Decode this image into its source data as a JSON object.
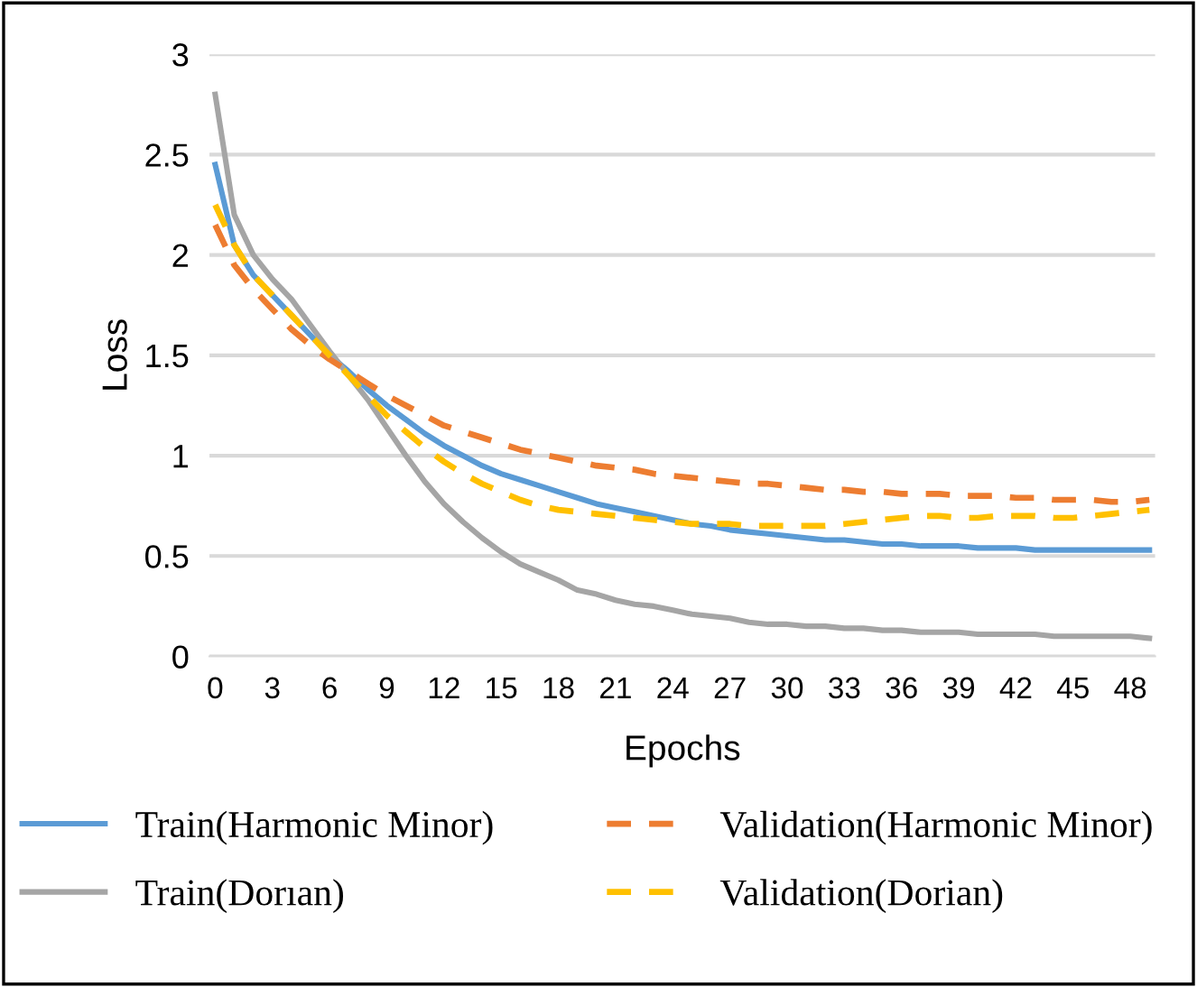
{
  "chart_data": {
    "type": "line",
    "xlabel": "Epochs",
    "ylabel": "Loss",
    "categories": [
      "0",
      null,
      null,
      "3",
      null,
      null,
      "6",
      null,
      null,
      "9",
      null,
      null,
      "12",
      null,
      null,
      "15",
      null,
      null,
      "18",
      null,
      null,
      "21",
      null,
      null,
      "24",
      null,
      null,
      "27",
      null,
      null,
      "30",
      null,
      null,
      "33",
      null,
      null,
      "36",
      null,
      null,
      "39",
      null,
      null,
      "42",
      null,
      null,
      "45",
      null,
      null,
      "48",
      null
    ],
    "ylim": [
      0,
      3
    ],
    "yticks": [
      0,
      0.5,
      1,
      1.5,
      2,
      2.5,
      3
    ],
    "grid": "y",
    "legend": "bottom",
    "series": [
      {
        "name": "Train(Harmonic Minor)",
        "color": "#5b9bd5",
        "line_style": "solid",
        "values": [
          2.45,
          2.05,
          1.9,
          1.8,
          1.7,
          1.6,
          1.5,
          1.42,
          1.33,
          1.25,
          1.18,
          1.11,
          1.05,
          1.0,
          0.95,
          0.91,
          0.88,
          0.85,
          0.82,
          0.79,
          0.76,
          0.74,
          0.72,
          0.7,
          0.68,
          0.66,
          0.65,
          0.63,
          0.62,
          0.61,
          0.6,
          0.59,
          0.58,
          0.58,
          0.57,
          0.56,
          0.56,
          0.55,
          0.55,
          0.55,
          0.54,
          0.54,
          0.54,
          0.53,
          0.53,
          0.53,
          0.53,
          0.53,
          0.53,
          0.53
        ]
      },
      {
        "name": "Train(Dorıan)",
        "color": "#a5a5a5",
        "line_style": "solid",
        "values": [
          2.8,
          2.2,
          2.0,
          1.88,
          1.78,
          1.65,
          1.52,
          1.4,
          1.28,
          1.14,
          1.0,
          0.87,
          0.76,
          0.67,
          0.59,
          0.52,
          0.46,
          0.42,
          0.38,
          0.33,
          0.31,
          0.28,
          0.26,
          0.25,
          0.23,
          0.21,
          0.2,
          0.19,
          0.17,
          0.16,
          0.16,
          0.15,
          0.15,
          0.14,
          0.14,
          0.13,
          0.13,
          0.12,
          0.12,
          0.12,
          0.11,
          0.11,
          0.11,
          0.11,
          0.1,
          0.1,
          0.1,
          0.1,
          0.1,
          0.09
        ]
      },
      {
        "name": "Validation(Harmonic Minor)",
        "color": "#ed7d31",
        "line_style": "dashed",
        "values": [
          2.15,
          1.95,
          1.83,
          1.73,
          1.63,
          1.55,
          1.48,
          1.42,
          1.36,
          1.3,
          1.25,
          1.2,
          1.15,
          1.12,
          1.09,
          1.06,
          1.03,
          1.01,
          0.99,
          0.97,
          0.95,
          0.94,
          0.93,
          0.91,
          0.9,
          0.89,
          0.88,
          0.87,
          0.86,
          0.86,
          0.85,
          0.84,
          0.83,
          0.83,
          0.82,
          0.82,
          0.81,
          0.81,
          0.81,
          0.8,
          0.8,
          0.8,
          0.79,
          0.79,
          0.78,
          0.78,
          0.78,
          0.77,
          0.77,
          0.78
        ]
      },
      {
        "name": "Validation(Dorian)",
        "color": "#ffc000",
        "line_style": "dashed",
        "values": [
          2.25,
          2.05,
          1.9,
          1.8,
          1.7,
          1.6,
          1.5,
          1.4,
          1.3,
          1.2,
          1.12,
          1.04,
          0.97,
          0.91,
          0.86,
          0.82,
          0.78,
          0.75,
          0.73,
          0.72,
          0.71,
          0.7,
          0.69,
          0.68,
          0.67,
          0.66,
          0.66,
          0.66,
          0.65,
          0.65,
          0.65,
          0.65,
          0.65,
          0.66,
          0.67,
          0.68,
          0.69,
          0.7,
          0.7,
          0.69,
          0.69,
          0.7,
          0.7,
          0.7,
          0.69,
          0.69,
          0.7,
          0.71,
          0.72,
          0.73
        ]
      }
    ]
  }
}
